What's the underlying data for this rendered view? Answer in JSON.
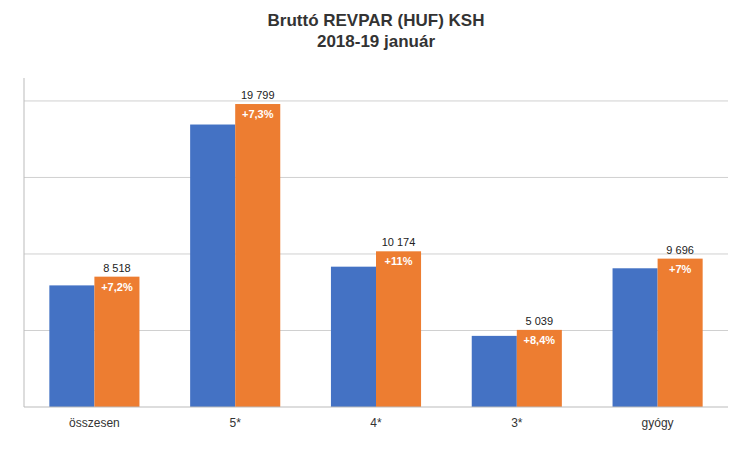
{
  "chart_data": {
    "type": "bar",
    "title": "Bruttó REVPAR (HUF) KSH\n2018-19 január",
    "categories": [
      "összesen",
      "5*",
      "4*",
      "3*",
      "gyógy"
    ],
    "series": [
      {
        "color": "#4472C4",
        "values": [
          7947,
          18460,
          9170,
          4648,
          9065
        ]
      },
      {
        "color": "#ED7D31",
        "values": [
          8518,
          19799,
          10174,
          5039,
          9696
        ],
        "data_labels": true,
        "value_labels": [
          "8 518",
          "19 799",
          "10 174",
          "5 039",
          "9 696"
        ],
        "annotations": [
          "+7,2%",
          "+7,3%",
          "+11%",
          "+8,4%",
          "+7%"
        ]
      }
    ],
    "ylim": [
      0,
      21500
    ],
    "yticks": [
      5000,
      10000,
      15000,
      20000
    ],
    "grid": true,
    "tick_labels": "x"
  }
}
